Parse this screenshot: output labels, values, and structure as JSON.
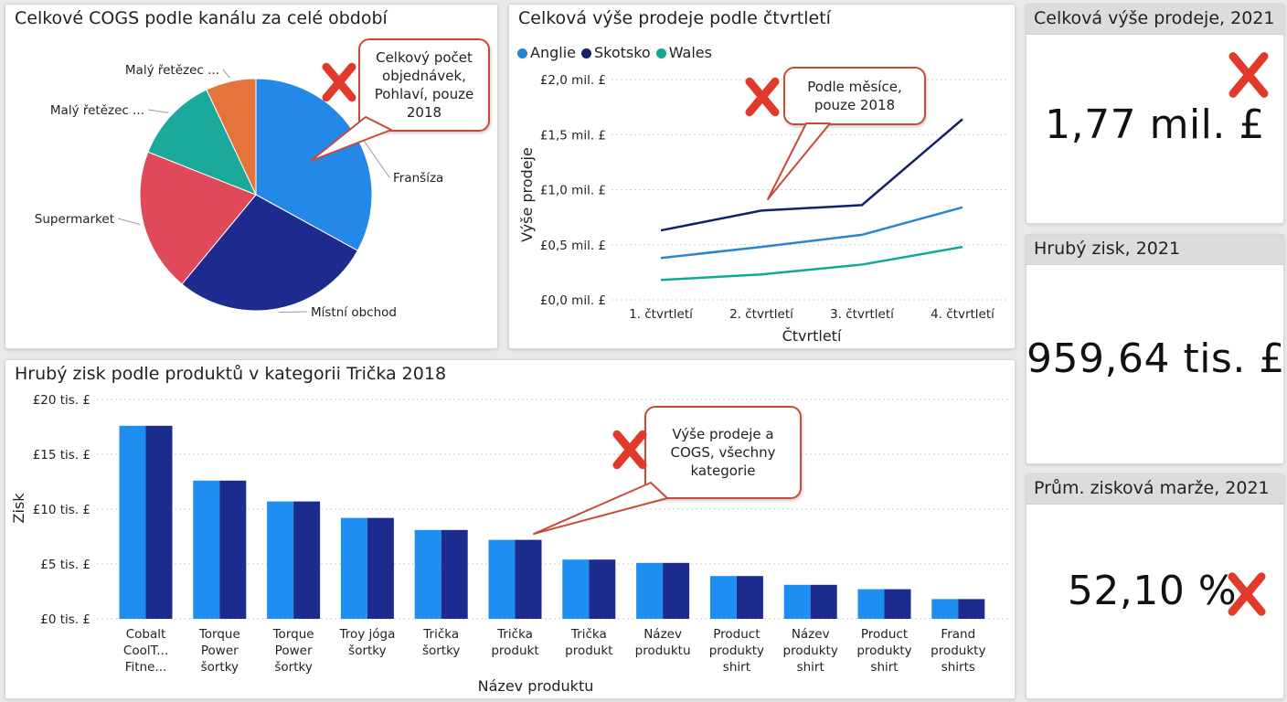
{
  "colors": {
    "blue": "#2388e8",
    "navy": "#1d2b8f",
    "teal": "#1aa99a",
    "red": "#e0495a",
    "orange": "#e5743c",
    "mid_blue": "#2c5fb6",
    "bar_light": "#1e8ef0",
    "bar_dark": "#1c2c8e",
    "line_anglie": "#2a85d1",
    "line_skotsko": "#14206a",
    "line_wales": "#13a896",
    "callout_border": "#c94a3b",
    "x_mark": "#e23a2a"
  },
  "pie_panel": {
    "title": "Celkové COGS podle kanálu za celé období",
    "callout": [
      "Celkový počet",
      "objednávek,",
      "Pohlaví, pouze",
      "2018"
    ]
  },
  "line_panel": {
    "title": "Celková výše prodeje podle čtvrtletí",
    "callout": [
      "Podle měsíce,",
      "pouze 2018"
    ]
  },
  "bar_panel": {
    "title": "Hrubý zisk podle produktů v kategorii Trička 2018",
    "callout": [
      "Výše prodeje a",
      "COGS, všechny",
      "kategorie"
    ]
  },
  "kpis": [
    {
      "title": "Celková výše prodeje, 2021",
      "value": "1,77 mil. £"
    },
    {
      "title": "Hrubý zisk, 2021",
      "value": "959,64 tis. £"
    },
    {
      "title": "Prům. zisková marže, 2021",
      "value": "52,10 %"
    }
  ],
  "chart_data": [
    {
      "type": "pie",
      "title": "Celkové COGS podle kanálu za celé období",
      "slices": [
        {
          "label": "Franšíza",
          "value": 33,
          "color": "#2388e8"
        },
        {
          "label": "Místní obchod",
          "value": 28,
          "color": "#1d2b8f"
        },
        {
          "label": "Supermarket",
          "value": 20,
          "color": "#e0495a"
        },
        {
          "label": "Malý řetězec ...",
          "value": 12,
          "color": "#1aa99a"
        },
        {
          "label": "Malý řetězec ...",
          "value": 7,
          "color": "#e5743c"
        }
      ]
    },
    {
      "type": "line",
      "title": "Celková výše prodeje podle čtvrtletí",
      "xlabel": "Čtvrtletí",
      "ylabel": "Výše prodeje",
      "categories": [
        "1. čtvrtletí",
        "2. čtvrtletí",
        "3. čtvrtletí",
        "4. čtvrtletí"
      ],
      "yticks": [
        "£0,0 mil. £",
        "£0,5 mil. £",
        "£1,0 mil. £",
        "£1,5 mil. £",
        "£2,0 mil. £"
      ],
      "ylim": [
        0,
        2.0
      ],
      "legend_position": "top-left",
      "series": [
        {
          "name": "Anglie",
          "values": [
            0.38,
            0.48,
            0.59,
            0.84
          ],
          "color": "#2a85d1"
        },
        {
          "name": "Skotsko",
          "values": [
            0.63,
            0.81,
            0.86,
            1.64
          ],
          "color": "#14206a"
        },
        {
          "name": "Wales",
          "values": [
            0.18,
            0.23,
            0.32,
            0.48
          ],
          "color": "#13a896"
        }
      ]
    },
    {
      "type": "bar",
      "title": "Hrubý zisk podle produktů v kategorii Trička 2018",
      "xlabel": "Název produktu",
      "ylabel": "Zisk",
      "ylim": [
        0,
        20
      ],
      "yticks": [
        "£0 tis. £",
        "£5 tis. £",
        "£10 tis. £",
        "£15 tis. £",
        "£20 tis. £"
      ],
      "categories": [
        [
          "Cobalt",
          "CoolT...",
          "Fitne..."
        ],
        [
          "Torque",
          "Power",
          "šortky"
        ],
        [
          "Torque",
          "Power",
          "šortky"
        ],
        [
          "Troy jóga",
          "šortky"
        ],
        [
          "Trička",
          "šortky"
        ],
        [
          "Trička",
          "produkt"
        ],
        [
          "Trička",
          "produkt"
        ],
        [
          "Název",
          "produktu"
        ],
        [
          "Product",
          "produkty",
          "shirt"
        ],
        [
          "Název",
          "produkty",
          "shirt"
        ],
        [
          "Product",
          "produkty",
          "shirt"
        ],
        [
          "Frand",
          "produkty",
          "shirts"
        ]
      ],
      "values": [
        17.6,
        12.6,
        10.7,
        9.2,
        8.1,
        7.2,
        5.4,
        5.1,
        3.9,
        3.1,
        2.7,
        1.8
      ]
    }
  ]
}
